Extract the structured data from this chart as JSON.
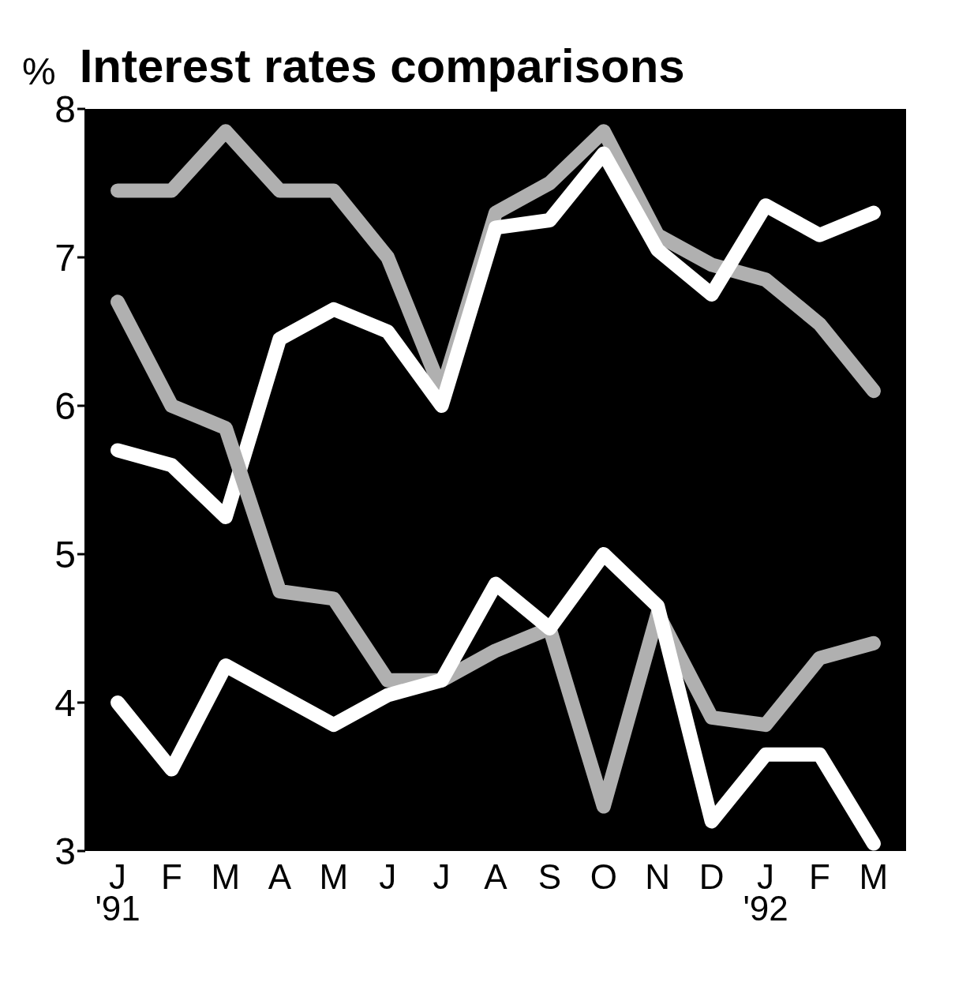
{
  "chart_data": {
    "type": "line",
    "title": "Interest rates comparisons",
    "ylabel": "%",
    "categories": [
      "J\n'91",
      "F",
      "M",
      "A",
      "M",
      "J",
      "J",
      "A",
      "S",
      "O",
      "N",
      "D",
      "J\n'92",
      "F",
      "M"
    ],
    "series": [
      {
        "color": "#b0b0b0",
        "values": [
          7.45,
          7.45,
          7.85,
          7.45,
          7.45,
          7.0,
          6.1,
          7.3,
          7.5,
          7.85,
          7.15,
          6.95,
          6.85,
          6.55,
          6.1
        ]
      },
      {
        "color": "#ffffff",
        "values": [
          5.7,
          5.6,
          5.25,
          6.45,
          6.65,
          6.5,
          6.0,
          7.2,
          7.25,
          7.7,
          7.05,
          6.75,
          7.35,
          7.15,
          7.3
        ]
      },
      {
        "color": "#b0b0b0",
        "values": [
          6.7,
          6.0,
          5.85,
          4.75,
          4.7,
          4.15,
          4.15,
          4.35,
          4.5,
          3.3,
          4.6,
          3.9,
          3.85,
          4.3,
          4.4
        ]
      },
      {
        "color": "#ffffff",
        "values": [
          4.0,
          3.55,
          4.25,
          4.05,
          3.85,
          4.05,
          4.15,
          4.8,
          4.5,
          5.0,
          4.65,
          3.2,
          3.65,
          3.65,
          3.05
        ]
      }
    ],
    "ylim": [
      3,
      8
    ],
    "yticks": [
      3,
      4,
      5,
      6,
      7,
      8
    ],
    "marker": "none",
    "line_style": "solid"
  }
}
